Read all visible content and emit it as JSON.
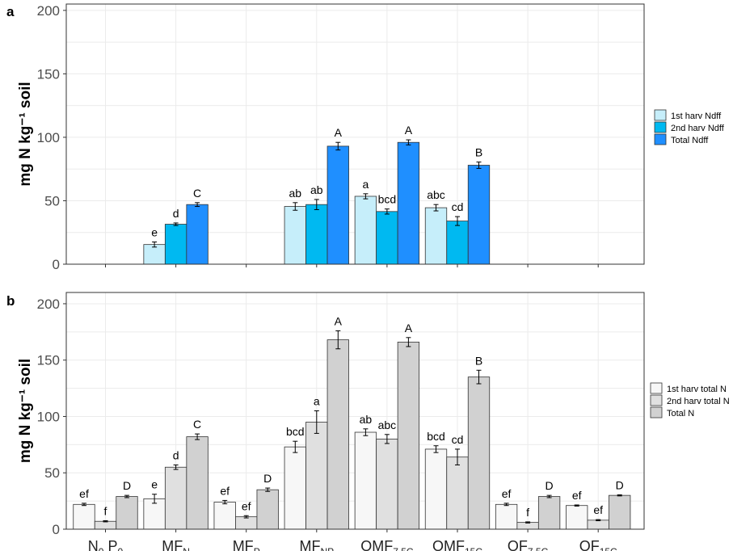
{
  "chart_data": [
    {
      "panel": "a",
      "type": "bar",
      "ylabel": "mg N kg⁻¹ soil",
      "ylim": [
        0,
        205
      ],
      "yticks": [
        0,
        50,
        100,
        150,
        200
      ],
      "grid": true,
      "legend_position": "right",
      "series": [
        {
          "name": "1st harv Ndff",
          "color": "#c6eefa",
          "values": [
            null,
            15.5,
            null,
            45.5,
            53.5,
            44.5,
            null,
            null
          ],
          "errors": [
            null,
            2,
            null,
            3,
            2,
            2.5,
            null,
            null
          ],
          "letters": [
            "",
            "e",
            "",
            "ab",
            "a",
            "abc",
            "",
            ""
          ]
        },
        {
          "name": "2nd harv Ndff",
          "color": "#00b9f1",
          "values": [
            null,
            31.5,
            null,
            47,
            41.5,
            34,
            null,
            null
          ],
          "errors": [
            null,
            1,
            null,
            4,
            2,
            3.5,
            null,
            null
          ],
          "letters": [
            "",
            "d",
            "",
            "ab",
            "bcd",
            "cd",
            "",
            ""
          ]
        },
        {
          "name": "Total Ndff",
          "color": "#1f8fff",
          "values": [
            null,
            47,
            null,
            93,
            96,
            78,
            null,
            null
          ],
          "errors": [
            null,
            1.5,
            null,
            3,
            2,
            2.5,
            null,
            null
          ],
          "letters": [
            "",
            "C",
            "",
            "A",
            "A",
            "B",
            "",
            ""
          ]
        }
      ]
    },
    {
      "panel": "b",
      "type": "bar",
      "ylabel": "mg N kg⁻¹ soil",
      "ylim": [
        0,
        210
      ],
      "yticks": [
        0,
        50,
        100,
        150,
        200
      ],
      "grid": true,
      "legend_position": "right",
      "categories": [
        {
          "base": "N",
          "sub": "0",
          "base2": " P",
          "sub2": "0"
        },
        {
          "base": "MF",
          "sub": "N"
        },
        {
          "base": "MF",
          "sub": "P"
        },
        {
          "base": "MF",
          "sub": "NP"
        },
        {
          "base": "OMF",
          "sub": "7.5C"
        },
        {
          "base": "OMF",
          "sub": "15C"
        },
        {
          "base": "OF",
          "sub": "7.5C"
        },
        {
          "base": "OF",
          "sub": "15C"
        }
      ],
      "series": [
        {
          "name": "1st harv total N",
          "color": "#f7f7f7",
          "values": [
            22,
            27,
            24,
            73,
            86,
            71,
            22,
            21
          ],
          "errors": [
            1,
            4,
            1.5,
            5,
            3,
            3,
            1,
            0.5
          ],
          "letters": [
            "ef",
            "e",
            "ef",
            "bcd",
            "ab",
            "bcd",
            "ef",
            "ef"
          ]
        },
        {
          "name": "2nd harv total N",
          "color": "#e0e0e0",
          "values": [
            7,
            55,
            11,
            95,
            80,
            64,
            6,
            8
          ],
          "errors": [
            0.5,
            2,
            1,
            10,
            4,
            7,
            0.5,
            0.5
          ],
          "letters": [
            "f",
            "d",
            "ef",
            "a",
            "abc",
            "cd",
            "f",
            "ef"
          ]
        },
        {
          "name": "Total N",
          "color": "#d1d1d1",
          "values": [
            29,
            82,
            35,
            168,
            166,
            135,
            29,
            30
          ],
          "errors": [
            1,
            2.5,
            1.5,
            8,
            4,
            6,
            1,
            0.5
          ],
          "letters": [
            "D",
            "C",
            "D",
            "A",
            "A",
            "B",
            "D",
            "D"
          ]
        }
      ]
    }
  ],
  "panel_tags": {
    "a": "a",
    "b": "b"
  }
}
